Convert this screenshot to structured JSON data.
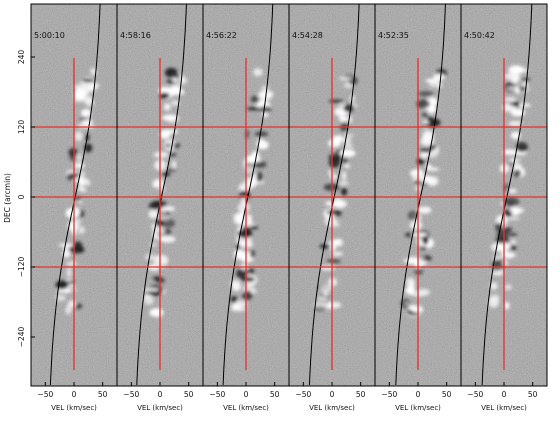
{
  "figure": {
    "y_axis_label": "DEC (arcmin)",
    "y_ticks": [
      "240",
      "120",
      "0",
      "−120",
      "−240"
    ],
    "y_tick_values": [
      240,
      120,
      0,
      -120,
      -240
    ],
    "x_axis_label": "VEL (km/sec)",
    "x_ticks": [
      "−50",
      "0",
      "50"
    ],
    "x_tick_values": [
      -50,
      0,
      50
    ],
    "panels": [
      {
        "time": "5:00:10"
      },
      {
        "time": "4:58:16"
      },
      {
        "time": "4:56:22"
      },
      {
        "time": "4:54:28"
      },
      {
        "time": "4:52:35"
      },
      {
        "time": "4:50:42"
      }
    ],
    "reference_lines": {
      "horizontal_dec": [
        120,
        0,
        -120
      ],
      "vertical_vel": [
        0
      ],
      "color": "#e8302a"
    },
    "curve_color": "#000000",
    "background_color": "#9c9c9c"
  }
}
